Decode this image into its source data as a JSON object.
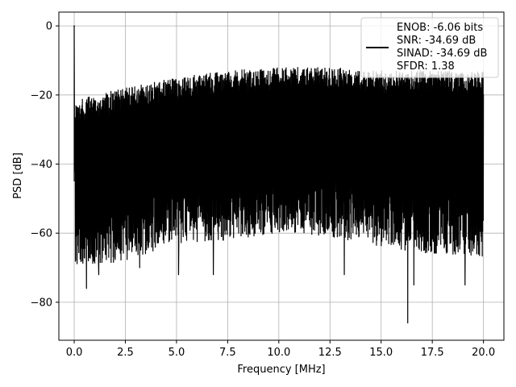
{
  "chart_data": {
    "type": "line",
    "xlabel": "Frequency [MHz]",
    "ylabel": "PSD [dB]",
    "xlim": [
      -0.75,
      21.0
    ],
    "ylim": [
      -91,
      4
    ],
    "xticks": [
      0.0,
      2.5,
      5.0,
      7.5,
      10.0,
      12.5,
      15.0,
      17.5,
      20.0
    ],
    "xtick_labels": [
      "0.0",
      "2.5",
      "5.0",
      "7.5",
      "10.0",
      "12.5",
      "15.0",
      "17.5",
      "20.0"
    ],
    "yticks": [
      0,
      -20,
      -40,
      -60,
      -80
    ],
    "ytick_labels": [
      "0",
      "−20",
      "−40",
      "−60",
      "−80"
    ],
    "grid": true,
    "legend": {
      "placement": "top-right",
      "entries": [
        "ENOB: -6.06 bits",
        "SNR: -34.69 dB",
        "SINAD: -34.69 dB",
        "SFDR: 1.38"
      ]
    },
    "series": [
      {
        "color": "#000000",
        "upper_envelope": {
          "x": [
            0.05,
            0.5,
            1.0,
            2.5,
            5.0,
            7.5,
            10.0,
            12.5,
            15.0,
            17.5,
            20.0
          ],
          "y": [
            -22,
            -21,
            -20,
            -18,
            -15,
            -13,
            -12,
            -12,
            -13,
            -13,
            -13
          ]
        },
        "lower_envelope": {
          "x": [
            0.05,
            2.5,
            5.0,
            7.5,
            10.0,
            12.5,
            15.0,
            17.5,
            20.0
          ],
          "y": [
            -65,
            -63,
            -58,
            -57,
            -55,
            -56,
            -59,
            -61,
            -62
          ]
        },
        "peak": {
          "x": 0.0,
          "y": 0
        },
        "deep_dips": [
          {
            "x": 0.6,
            "y": -76
          },
          {
            "x": 1.2,
            "y": -72
          },
          {
            "x": 3.2,
            "y": -70
          },
          {
            "x": 5.1,
            "y": -72
          },
          {
            "x": 6.8,
            "y": -72
          },
          {
            "x": 13.2,
            "y": -72
          },
          {
            "x": 16.3,
            "y": -86
          },
          {
            "x": 16.6,
            "y": -75
          },
          {
            "x": 19.1,
            "y": -75
          }
        ]
      }
    ]
  }
}
